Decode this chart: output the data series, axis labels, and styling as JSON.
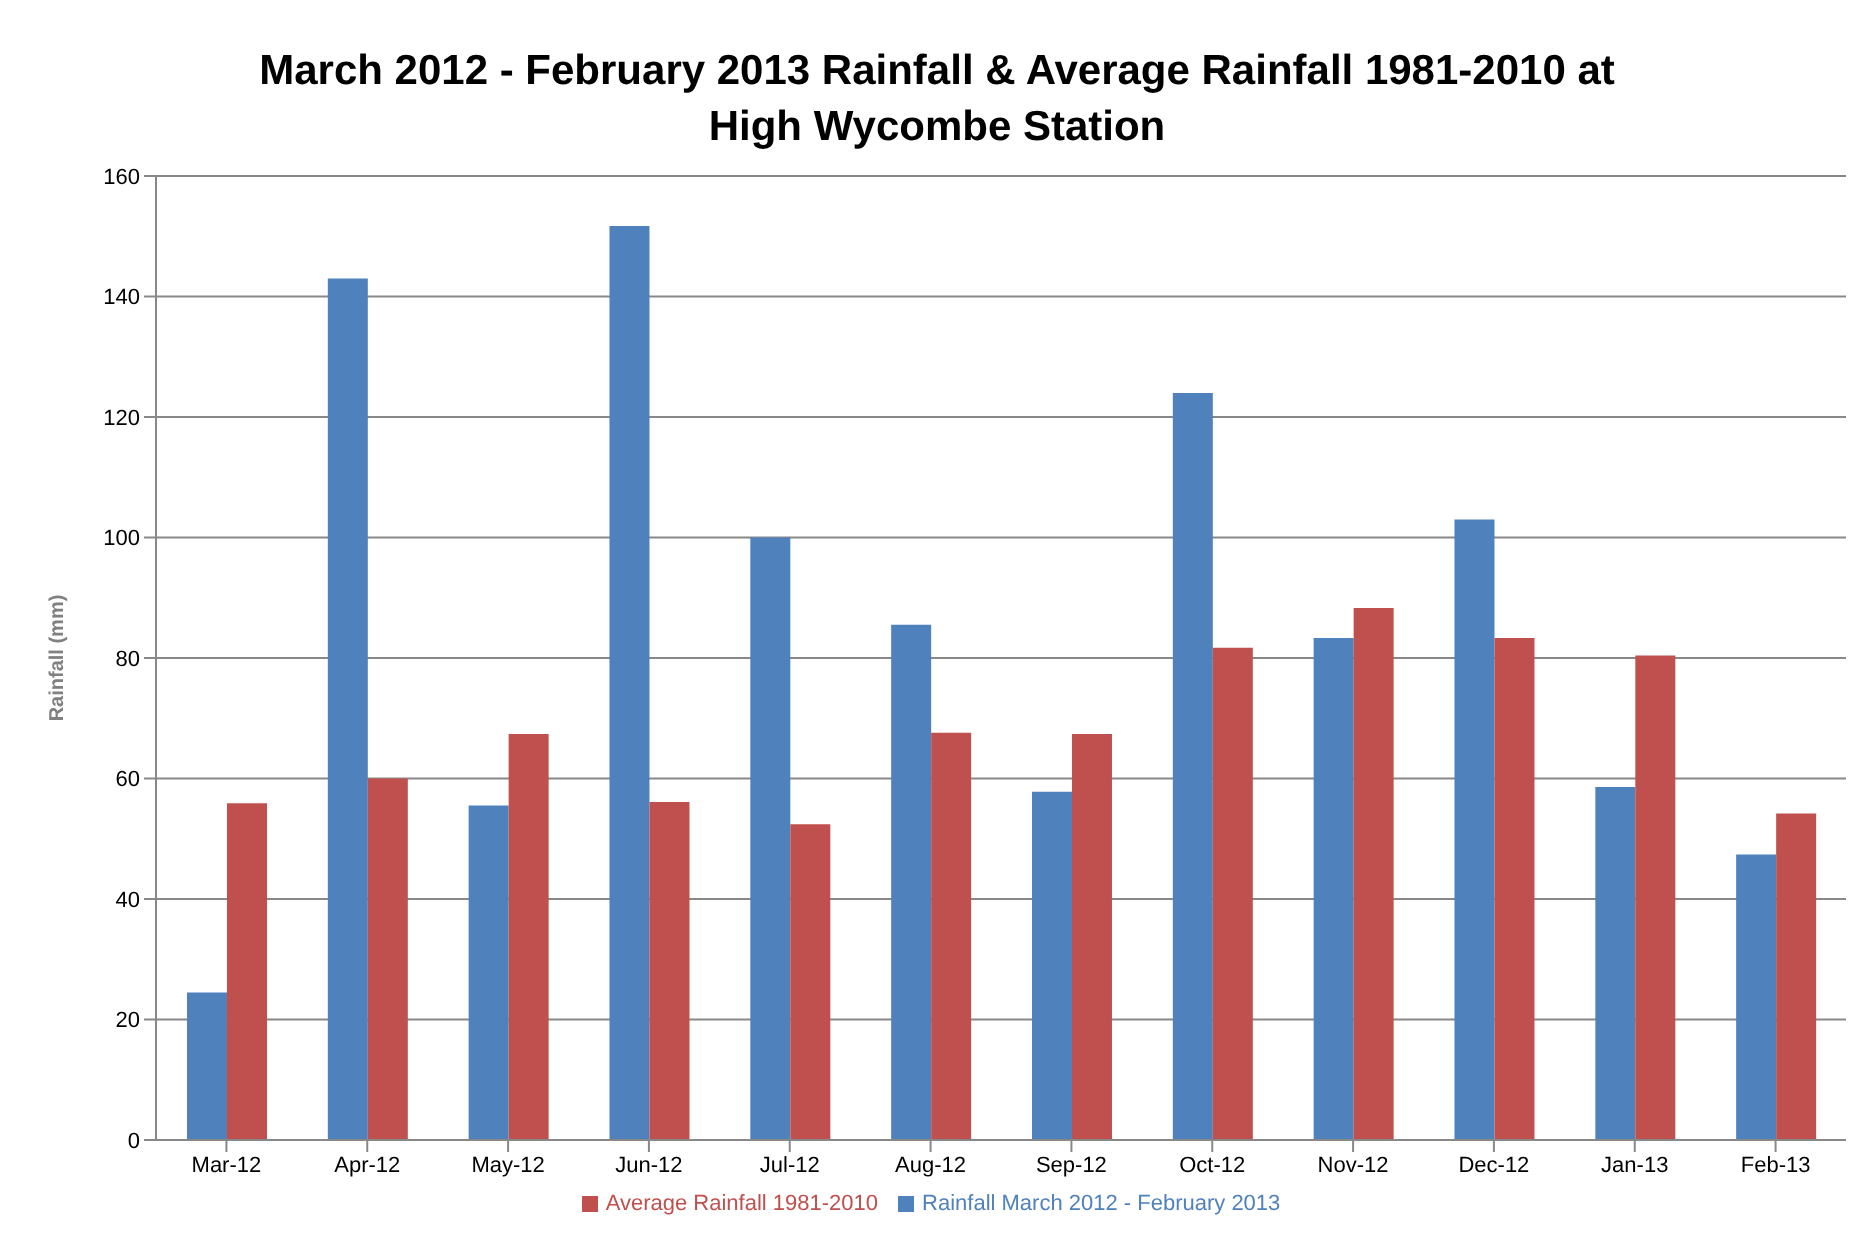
{
  "chart_data": {
    "type": "bar",
    "title": "March 2012 - February 2013 Rainfall & Average Rainfall 1981-2010 at High Wycombe Station",
    "ylabel": "Rainfall (mm)",
    "categories": [
      "Mar-12",
      "Apr-12",
      "May-12",
      "Jun-12",
      "Jul-12",
      "Aug-12",
      "Sep-12",
      "Oct-12",
      "Nov-12",
      "Dec-12",
      "Jan-13",
      "Feb-13"
    ],
    "series": [
      {
        "name": "Rainfall March 2012 - February 2013",
        "color": "#4f81bd",
        "values": [
          24.5,
          143,
          55.5,
          151.7,
          100,
          85.5,
          57.8,
          124,
          83.3,
          103,
          58.6,
          47.4
        ]
      },
      {
        "name": "Average Rainfall 1981-2010",
        "color": "#c0504d",
        "values": [
          55.9,
          60,
          67.4,
          56.1,
          52.4,
          67.6,
          67.4,
          81.7,
          88.3,
          83.3,
          80.4,
          54.2
        ]
      }
    ],
    "ylim": [
      0,
      160
    ],
    "yticks": [
      0,
      20,
      40,
      60,
      80,
      100,
      120,
      140,
      160
    ],
    "grid": "y",
    "legend": "bottom"
  }
}
